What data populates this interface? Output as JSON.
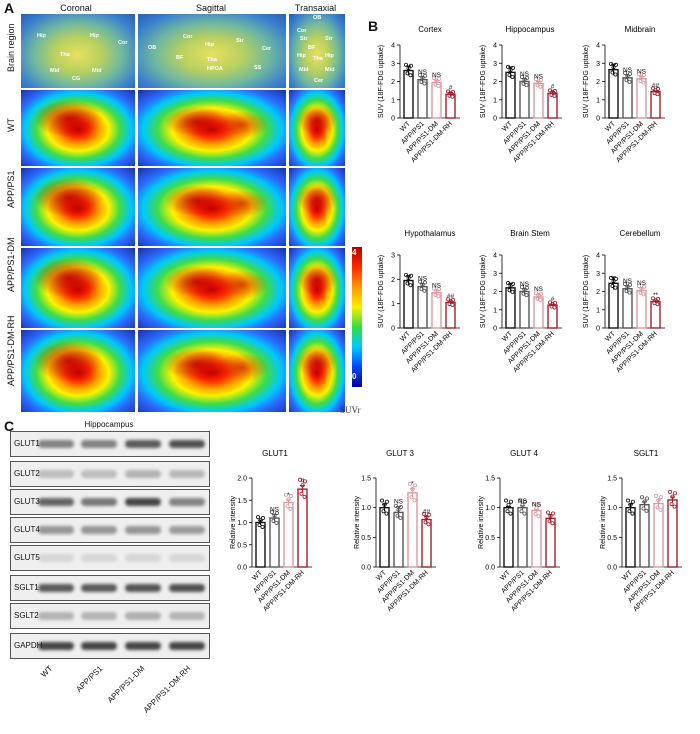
{
  "panel_letters": [
    "A",
    "B",
    "C"
  ],
  "panelA": {
    "planes": [
      "Coronal",
      "Sagittal",
      "Transaxial"
    ],
    "rows": [
      "Brain region",
      "WT",
      "APP/PS1",
      "APP/PS1-DM",
      "APP/PS1-DM-RH"
    ],
    "colorbar_top": "4",
    "colorbar_bottom": "0",
    "colorbar_label": "SUVr",
    "region_labels": {
      "coronal": [
        "Hip",
        "Hip",
        "Cor",
        "Tha",
        "Mid",
        "Mid",
        "CG"
      ],
      "sagittal": [
        "OB",
        "Cor",
        "Hip",
        "Str",
        "Cer",
        "BF",
        "Tha",
        "HPOA",
        "SS"
      ],
      "transaxial": [
        "OB",
        "Cor",
        "Str",
        "Str",
        "BF",
        "Hip",
        "Tha",
        "Hip",
        "Mid",
        "Mid",
        "Cer"
      ]
    }
  },
  "panelC_blot": {
    "title": "Hippocampus",
    "bands": [
      "GLUT1",
      "GLUT2",
      "GLUT3",
      "GLUT4",
      "GLUT5",
      "SGLT1",
      "SGLT2",
      "GAPDH"
    ],
    "lanes": [
      "WT",
      "APP/PS1",
      "APP/PS1-DM",
      "APP/PS1-DM-RH"
    ]
  },
  "chart_data": [
    {
      "type": "bar",
      "title": "Cortex",
      "ylabel": "SUV (18F-FDG uptake)",
      "ylim": [
        0,
        4
      ],
      "yticks": [
        "0",
        "1",
        "2",
        "3",
        "4"
      ],
      "categories": [
        "WT",
        "APP/PS1",
        "APP/PS1-DM",
        "APP/PS1-DM-RH"
      ],
      "values": [
        2.6,
        2.1,
        1.95,
        1.3
      ],
      "errors": [
        0.25,
        0.15,
        0.12,
        0.1
      ],
      "annotations": [
        "",
        "NS",
        "NS",
        "#"
      ]
    },
    {
      "type": "bar",
      "title": "Hippocampus",
      "ylabel": "SUV (18F-FDG uptake)",
      "ylim": [
        0,
        4
      ],
      "yticks": [
        "0",
        "1",
        "2",
        "3",
        "4"
      ],
      "categories": [
        "WT",
        "APP/PS1",
        "APP/PS1-DM",
        "APP/PS1-DM-RH"
      ],
      "values": [
        2.5,
        2.0,
        1.9,
        1.35
      ],
      "errors": [
        0.3,
        0.15,
        0.1,
        0.1
      ],
      "annotations": [
        "",
        "NS",
        "NS",
        "#"
      ]
    },
    {
      "type": "bar",
      "title": "Midbrain",
      "ylabel": "SUV (18F-FDG uptake)",
      "ylim": [
        0,
        4
      ],
      "yticks": [
        "0",
        "1",
        "2",
        "3",
        "4"
      ],
      "categories": [
        "WT",
        "APP/PS1",
        "APP/PS1-DM",
        "APP/PS1-DM-RH"
      ],
      "values": [
        2.65,
        2.2,
        2.15,
        1.45
      ],
      "errors": [
        0.3,
        0.15,
        0.12,
        0.05
      ],
      "annotations": [
        "",
        "NS",
        "NS",
        "##"
      ]
    },
    {
      "type": "bar",
      "title": "Hypothalamus",
      "ylabel": "SUV (18F-FDG uptake)",
      "ylim": [
        0,
        3
      ],
      "yticks": [
        "0",
        "1",
        "2",
        "3"
      ],
      "categories": [
        "WT",
        "APP/PS1",
        "APP/PS1-DM",
        "APP/PS1-DM-RH"
      ],
      "values": [
        1.95,
        1.7,
        1.45,
        1.05
      ],
      "errors": [
        0.2,
        0.12,
        0.1,
        0.06
      ],
      "annotations": [
        "",
        "NS",
        "NS",
        "##"
      ]
    },
    {
      "type": "bar",
      "title": "Brain Stem",
      "ylabel": "SUV (18F-FDG uptake)",
      "ylim": [
        0,
        4
      ],
      "yticks": [
        "0",
        "1",
        "2",
        "3",
        "4"
      ],
      "categories": [
        "WT",
        "APP/PS1",
        "APP/PS1-DM",
        "APP/PS1-DM-RH"
      ],
      "values": [
        2.2,
        2.0,
        1.7,
        1.25
      ],
      "errors": [
        0.25,
        0.15,
        0.15,
        0.06
      ],
      "annotations": [
        "",
        "NS",
        "NS",
        "#"
      ]
    },
    {
      "type": "bar",
      "title": "Cerebellum",
      "ylabel": "SUV (18F-FDG uptake)",
      "ylim": [
        0,
        4
      ],
      "yticks": [
        "0",
        "1",
        "2",
        "3",
        "4"
      ],
      "categories": [
        "WT",
        "APP/PS1",
        "APP/PS1-DM",
        "APP/PS1-DM-RH"
      ],
      "values": [
        2.45,
        2.15,
        2.05,
        1.45
      ],
      "errors": [
        0.35,
        0.15,
        0.15,
        0.08
      ],
      "annotations": [
        "",
        "NS",
        "NS",
        "**"
      ]
    },
    {
      "type": "bar",
      "title": "GLUT1",
      "ylabel": "Relative intensity",
      "ylim": [
        0,
        2.0
      ],
      "yticks": [
        "0.0",
        "0.5",
        "1.0",
        "1.5",
        "2.0"
      ],
      "categories": [
        "WT",
        "APP/PS1",
        "APP/PS1-DM",
        "APP/PS1-DM-RH"
      ],
      "values": [
        1.0,
        1.1,
        1.45,
        1.75
      ],
      "errors": [
        0.05,
        0.08,
        0.06,
        0.08
      ],
      "annotations": [
        "",
        "NS",
        "*",
        "#"
      ]
    },
    {
      "type": "bar",
      "title": "GLUT 3",
      "ylabel": "Relative intensity",
      "ylim": [
        0,
        1.5
      ],
      "yticks": [
        "0.0",
        "0.5",
        "1.0",
        "1.5"
      ],
      "categories": [
        "WT",
        "APP/PS1",
        "APP/PS1-DM",
        "APP/PS1-DM-RH"
      ],
      "values": [
        1.0,
        0.92,
        1.25,
        0.8
      ],
      "errors": [
        0.06,
        0.1,
        0.07,
        0.05
      ],
      "annotations": [
        "",
        "NS",
        "*",
        "##"
      ]
    },
    {
      "type": "bar",
      "title": "GLUT 4",
      "ylabel": "Relative intensity",
      "ylim": [
        0,
        1.5
      ],
      "yticks": [
        "0.0",
        "0.5",
        "1.0",
        "1.5"
      ],
      "categories": [
        "WT",
        "APP/PS1",
        "APP/PS1-DM",
        "APP/PS1-DM-RH"
      ],
      "values": [
        1.0,
        1.0,
        0.95,
        0.82
      ],
      "errors": [
        0.02,
        0.03,
        0.02,
        0.06
      ],
      "annotations": [
        "",
        "NS",
        "NS",
        ""
      ]
    },
    {
      "type": "bar",
      "title": "SGLT1",
      "ylabel": "Relative intensity",
      "ylim": [
        0,
        1.5
      ],
      "yticks": [
        "0.0",
        "0.5",
        "1.0",
        "1.5"
      ],
      "categories": [
        "WT",
        "APP/PS1",
        "APP/PS1-DM",
        "APP/PS1-DM-RH"
      ],
      "values": [
        1.0,
        1.05,
        1.07,
        1.13
      ],
      "errors": [
        0.06,
        0.05,
        0.06,
        0.05
      ],
      "annotations": [
        "",
        "",
        "",
        ""
      ]
    }
  ],
  "colors": {
    "series": [
      "#111111",
      "#555555",
      "#d99aa0",
      "#a11f2a"
    ]
  }
}
